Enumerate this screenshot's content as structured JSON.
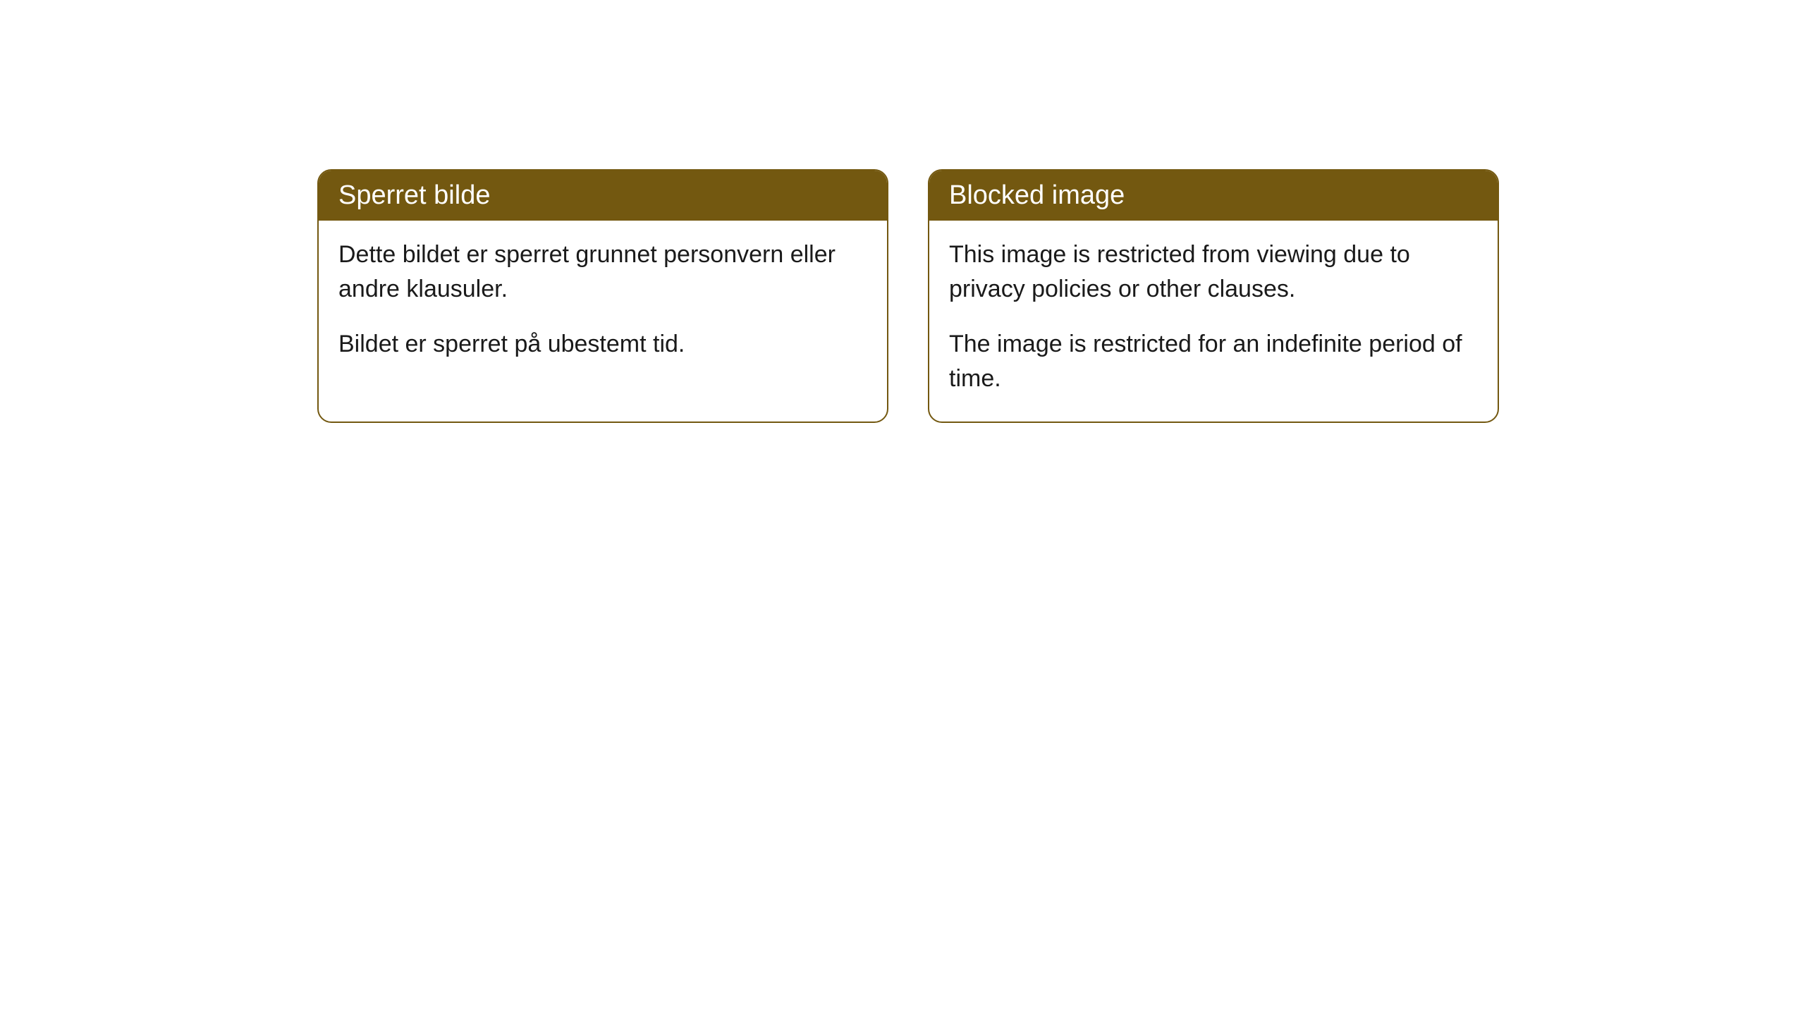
{
  "cards": [
    {
      "title": "Sperret bilde",
      "paragraph1": "Dette bildet er sperret grunnet personvern eller andre klausuler.",
      "paragraph2": "Bildet er sperret på ubestemt tid."
    },
    {
      "title": "Blocked image",
      "paragraph1": "This image is restricted from viewing due to privacy policies or other clauses.",
      "paragraph2": "The image is restricted for an indefinite period of time."
    }
  ],
  "styling": {
    "header_background_color": "#735810",
    "header_text_color": "#ffffff",
    "card_border_color": "#735810",
    "card_background_color": "#ffffff",
    "body_text_color": "#1a1a1a",
    "page_background_color": "#ffffff",
    "card_border_radius": 20,
    "header_fontsize": 38,
    "body_fontsize": 34
  }
}
